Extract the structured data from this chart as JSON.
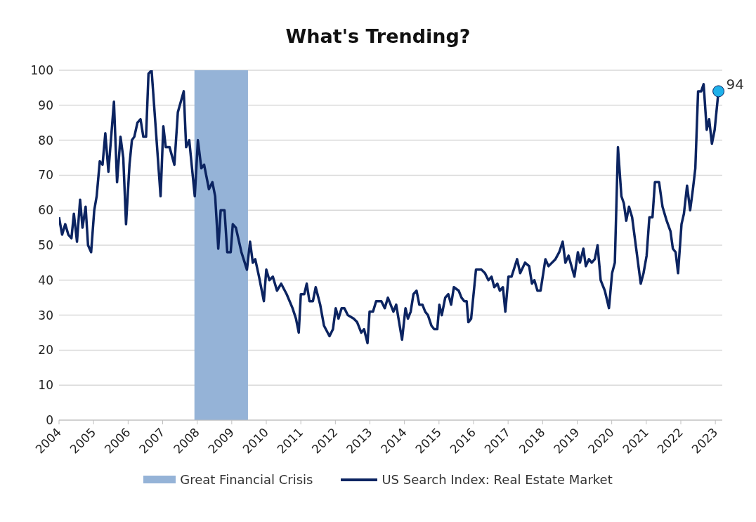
{
  "chart_data": {
    "type": "line",
    "title": "What's Trending?",
    "x": [
      2004.0,
      2004.09,
      2004.18,
      2004.27,
      2004.36,
      2004.43,
      2004.52,
      2004.61,
      2004.68,
      2004.77,
      2004.84,
      2004.93,
      2005.02,
      2005.09,
      2005.18,
      2005.26,
      2005.34,
      2005.43,
      2005.59,
      2005.68,
      2005.78,
      2005.86,
      2005.94,
      2006.04,
      2006.11,
      2006.18,
      2006.27,
      2006.36,
      2006.44,
      2006.52,
      2006.59,
      2006.68,
      2006.94,
      2007.02,
      2007.09,
      2007.2,
      2007.34,
      2007.44,
      2007.61,
      2007.68,
      2007.77,
      2007.93,
      2008.02,
      2008.12,
      2008.2,
      2008.34,
      2008.44,
      2008.52,
      2008.61,
      2008.68,
      2008.79,
      2008.87,
      2008.97,
      2009.03,
      2009.12,
      2009.28,
      2009.44,
      2009.53,
      2009.61,
      2009.68,
      2009.79,
      2009.93,
      2010.0,
      2010.09,
      2010.19,
      2010.31,
      2010.43,
      2010.59,
      2010.76,
      2010.86,
      2010.94,
      2011.0,
      2011.1,
      2011.17,
      2011.25,
      2011.35,
      2011.43,
      2011.56,
      2011.67,
      2011.83,
      2011.93,
      2012.01,
      2012.09,
      2012.18,
      2012.26,
      2012.36,
      2012.53,
      2012.63,
      2012.75,
      2012.83,
      2012.93,
      2012.99,
      2013.09,
      2013.18,
      2013.33,
      2013.43,
      2013.52,
      2013.68,
      2013.76,
      2013.93,
      2014.03,
      2014.1,
      2014.18,
      2014.26,
      2014.35,
      2014.43,
      2014.52,
      2014.6,
      2014.68,
      2014.78,
      2014.86,
      2014.95,
      2015.01,
      2015.08,
      2015.18,
      2015.27,
      2015.35,
      2015.43,
      2015.57,
      2015.65,
      2015.73,
      2015.8,
      2015.85,
      2015.93,
      2016.07,
      2016.23,
      2016.33,
      2016.43,
      2016.52,
      2016.6,
      2016.69,
      2016.76,
      2016.85,
      2016.92,
      2017.01,
      2017.1,
      2017.26,
      2017.35,
      2017.49,
      2017.61,
      2017.69,
      2017.76,
      2017.85,
      2017.94,
      2018.08,
      2018.17,
      2018.37,
      2018.48,
      2018.58,
      2018.66,
      2018.75,
      2018.92,
      2019.02,
      2019.08,
      2019.18,
      2019.25,
      2019.34,
      2019.42,
      2019.51,
      2019.59,
      2019.68,
      2019.8,
      2019.92,
      2020.01,
      2020.09,
      2020.18,
      2020.28,
      2020.35,
      2020.42,
      2020.5,
      2020.59,
      2020.84,
      2020.92,
      2021.01,
      2021.09,
      2021.18,
      2021.25,
      2021.37,
      2021.47,
      2021.59,
      2021.7,
      2021.77,
      2021.85,
      2021.92,
      2022.02,
      2022.09,
      2022.18,
      2022.27,
      2022.35,
      2022.42,
      2022.5,
      2022.59,
      2022.66,
      2022.75,
      2022.82,
      2022.9,
      2022.98,
      2023.09
    ],
    "series": [
      {
        "name": "US Search Index: Real Estate Market",
        "color": "#0c2461",
        "values": [
          58,
          53,
          56,
          53,
          52,
          59,
          51,
          63,
          55,
          61,
          50,
          48,
          60,
          64,
          74,
          73,
          82,
          71,
          91,
          68,
          81,
          75,
          56,
          73,
          80,
          81,
          85,
          86,
          81,
          81,
          99,
          100,
          64,
          84,
          78,
          78,
          73,
          88,
          94,
          78,
          80,
          64,
          80,
          72,
          73,
          66,
          68,
          64,
          49,
          60,
          60,
          48,
          48,
          56,
          55,
          48,
          43,
          51,
          45,
          46,
          41,
          34,
          43,
          40,
          41,
          37,
          39,
          36,
          32,
          29,
          25,
          36,
          36,
          39,
          34,
          34,
          38,
          33,
          27,
          24,
          26,
          32,
          29,
          32,
          32,
          30,
          29,
          28,
          25,
          26,
          22,
          31,
          31,
          34,
          34,
          32,
          35,
          31,
          33,
          23,
          32,
          29,
          31,
          36,
          37,
          33,
          33,
          31,
          30,
          27,
          26,
          26,
          33,
          30,
          35,
          36,
          33,
          38,
          37,
          35,
          34,
          34,
          28,
          29,
          43,
          43,
          42,
          40,
          41,
          38,
          39,
          37,
          38,
          31,
          41,
          41,
          46,
          42,
          45,
          44,
          39,
          40,
          37,
          37,
          46,
          44,
          46,
          48,
          51,
          45,
          47,
          41,
          48,
          45,
          49,
          44,
          46,
          45,
          46,
          50,
          40,
          37,
          32,
          42,
          45,
          78,
          64,
          62,
          57,
          61,
          58,
          39,
          42,
          47,
          58,
          58,
          68,
          68,
          61,
          57,
          54,
          49,
          48,
          42,
          56,
          59,
          67,
          60,
          66,
          72,
          94,
          94,
          96,
          83,
          86,
          79,
          83,
          94
        ]
      }
    ],
    "xlim": [
      2004,
      2023.2
    ],
    "xticks": [
      2004,
      2005,
      2006,
      2007,
      2008,
      2009,
      2010,
      2011,
      2012,
      2013,
      2014,
      2015,
      2016,
      2017,
      2018,
      2019,
      2020,
      2021,
      2022,
      2023
    ],
    "ylim": [
      0,
      100
    ],
    "yticks": [
      0,
      10,
      20,
      30,
      40,
      50,
      60,
      70,
      80,
      90,
      100
    ],
    "bands": [
      {
        "axis": "x",
        "from": 2007.92,
        "to": 2009.47,
        "label": "Great Financial Crisis",
        "color": "#95b3d7"
      }
    ],
    "annotations": [
      {
        "text": "94",
        "x": 2023.09,
        "y": 94
      }
    ],
    "grid": "y",
    "legend": "bottom",
    "line_style": "solid"
  }
}
